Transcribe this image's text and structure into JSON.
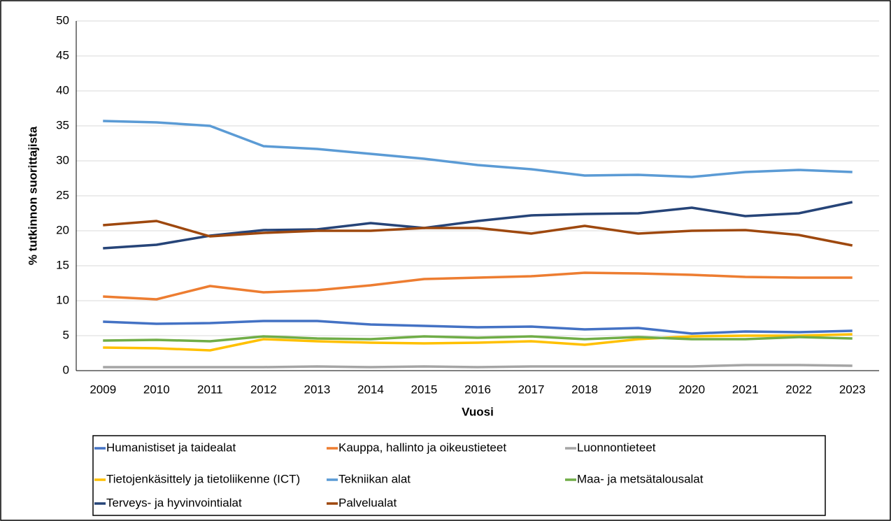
{
  "chart_data": {
    "type": "line",
    "x_label": "Vuosi",
    "y_label": "% tutkinnon suorittajista",
    "categories": [
      "2009",
      "2010",
      "2011",
      "2012",
      "2013",
      "2014",
      "2015",
      "2016",
      "2017",
      "2018",
      "2019",
      "2020",
      "2021",
      "2022",
      "2023"
    ],
    "ylim": [
      0,
      50
    ],
    "yticks": [
      0,
      5,
      10,
      15,
      20,
      25,
      30,
      35,
      40,
      45,
      50
    ],
    "grid": true,
    "series": [
      {
        "name": "Humanistiset ja taidealat",
        "color": "#4472c4",
        "values": [
          7.0,
          6.7,
          6.8,
          7.1,
          7.1,
          6.6,
          6.4,
          6.2,
          6.3,
          5.9,
          6.1,
          5.3,
          5.6,
          5.5,
          5.7
        ]
      },
      {
        "name": "Kauppa, hallinto ja oikeustieteet",
        "color": "#ed7d31",
        "values": [
          10.6,
          10.2,
          12.1,
          11.2,
          11.5,
          12.2,
          13.1,
          13.3,
          13.5,
          14.0,
          13.9,
          13.7,
          13.4,
          13.3,
          13.3
        ]
      },
      {
        "name": "Luonnontieteet",
        "color": "#a5a5a5",
        "values": [
          0.5,
          0.5,
          0.5,
          0.5,
          0.6,
          0.5,
          0.6,
          0.5,
          0.6,
          0.6,
          0.6,
          0.6,
          0.8,
          0.8,
          0.7
        ]
      },
      {
        "name": "Tietojenkäsittely ja tietoliikenne (ICT)",
        "color": "#ffc000",
        "values": [
          3.3,
          3.2,
          2.9,
          4.5,
          4.2,
          4.0,
          3.9,
          4.0,
          4.2,
          3.7,
          4.5,
          4.9,
          5.0,
          5.0,
          5.2
        ]
      },
      {
        "name": "Tekniikan alat",
        "color": "#5b9bd5",
        "values": [
          35.7,
          35.5,
          35.0,
          32.1,
          31.7,
          31.0,
          30.3,
          29.4,
          28.8,
          27.9,
          28.0,
          27.7,
          28.4,
          28.7,
          28.4
        ]
      },
      {
        "name": "Maa- ja metsätalousalat",
        "color": "#70ad47",
        "values": [
          4.3,
          4.4,
          4.2,
          4.9,
          4.6,
          4.5,
          4.9,
          4.7,
          4.9,
          4.5,
          4.8,
          4.5,
          4.5,
          4.8,
          4.6
        ]
      },
      {
        "name": "Terveys- ja hyvinvointialat",
        "color": "#264478",
        "values": [
          17.5,
          18.0,
          19.3,
          20.1,
          20.2,
          21.1,
          20.4,
          21.4,
          22.2,
          22.4,
          22.5,
          23.3,
          22.1,
          22.5,
          24.1
        ]
      },
      {
        "name": "Palvelualat",
        "color": "#9e480e",
        "values": [
          20.8,
          21.4,
          19.2,
          19.7,
          20.0,
          20.0,
          20.4,
          20.4,
          19.6,
          20.7,
          19.6,
          20.0,
          20.1,
          19.4,
          17.9
        ]
      }
    ]
  }
}
